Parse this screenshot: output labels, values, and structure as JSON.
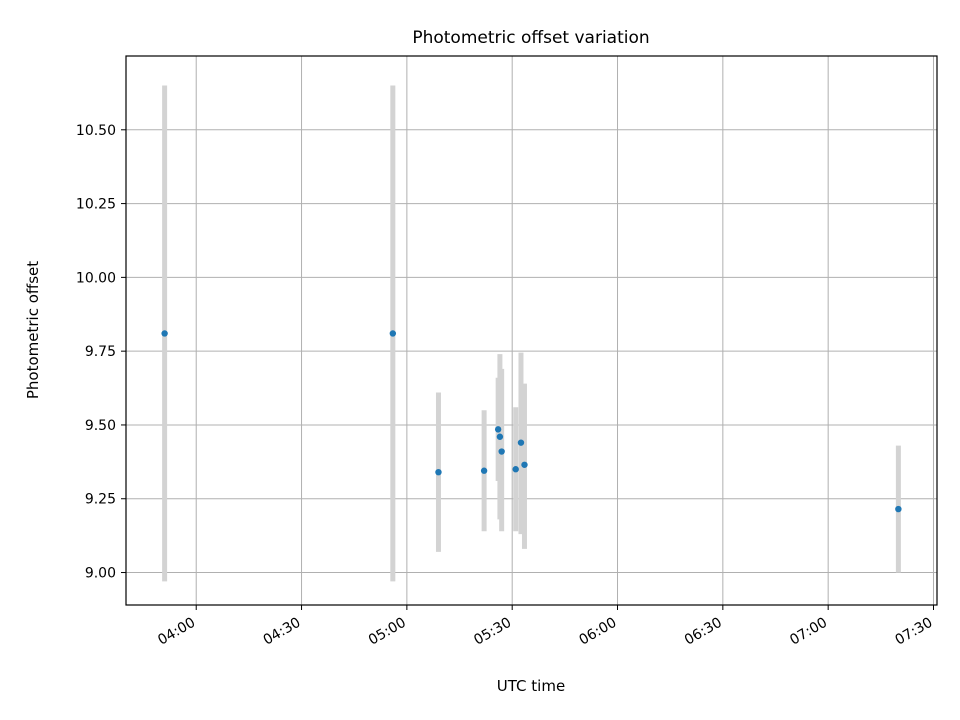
{
  "chart_data": {
    "type": "scatter",
    "title": "Photometric offset variation",
    "xlabel": "UTC time",
    "ylabel": "Photometric offset",
    "grid": true,
    "x_axis_type": "time",
    "xlim": [
      "03:40",
      "07:31"
    ],
    "ylim": [
      8.89,
      10.75
    ],
    "xticks": [
      "04:00",
      "04:30",
      "05:00",
      "05:30",
      "06:00",
      "06:30",
      "07:00",
      "07:30"
    ],
    "yticks": [
      "9.00",
      "9.25",
      "9.50",
      "9.75",
      "10.00",
      "10.25",
      "10.50"
    ],
    "point_color": "#1f77b4",
    "errorbar_color": "#d3d3d3",
    "points": [
      {
        "x": "03:51",
        "y": 9.81,
        "yerr_low": 8.97,
        "yerr_high": 10.65
      },
      {
        "x": "04:56",
        "y": 9.81,
        "yerr_low": 8.97,
        "yerr_high": 10.65
      },
      {
        "x": "05:09",
        "y": 9.34,
        "yerr_low": 9.07,
        "yerr_high": 9.61
      },
      {
        "x": "05:22",
        "y": 9.345,
        "yerr_low": 9.14,
        "yerr_high": 9.55
      },
      {
        "x": "05:26",
        "y": 9.485,
        "yerr_low": 9.31,
        "yerr_high": 9.66
      },
      {
        "x": "05:26.5",
        "y": 9.46,
        "yerr_low": 9.18,
        "yerr_high": 9.74
      },
      {
        "x": "05:27",
        "y": 9.41,
        "yerr_low": 9.14,
        "yerr_high": 9.69
      },
      {
        "x": "05:31",
        "y": 9.35,
        "yerr_low": 9.14,
        "yerr_high": 9.56
      },
      {
        "x": "05:32.5",
        "y": 9.44,
        "yerr_low": 9.13,
        "yerr_high": 9.745
      },
      {
        "x": "05:33.5",
        "y": 9.365,
        "yerr_low": 9.08,
        "yerr_high": 9.64
      },
      {
        "x": "07:20",
        "y": 9.215,
        "yerr_low": 9.0,
        "yerr_high": 9.43
      }
    ]
  }
}
